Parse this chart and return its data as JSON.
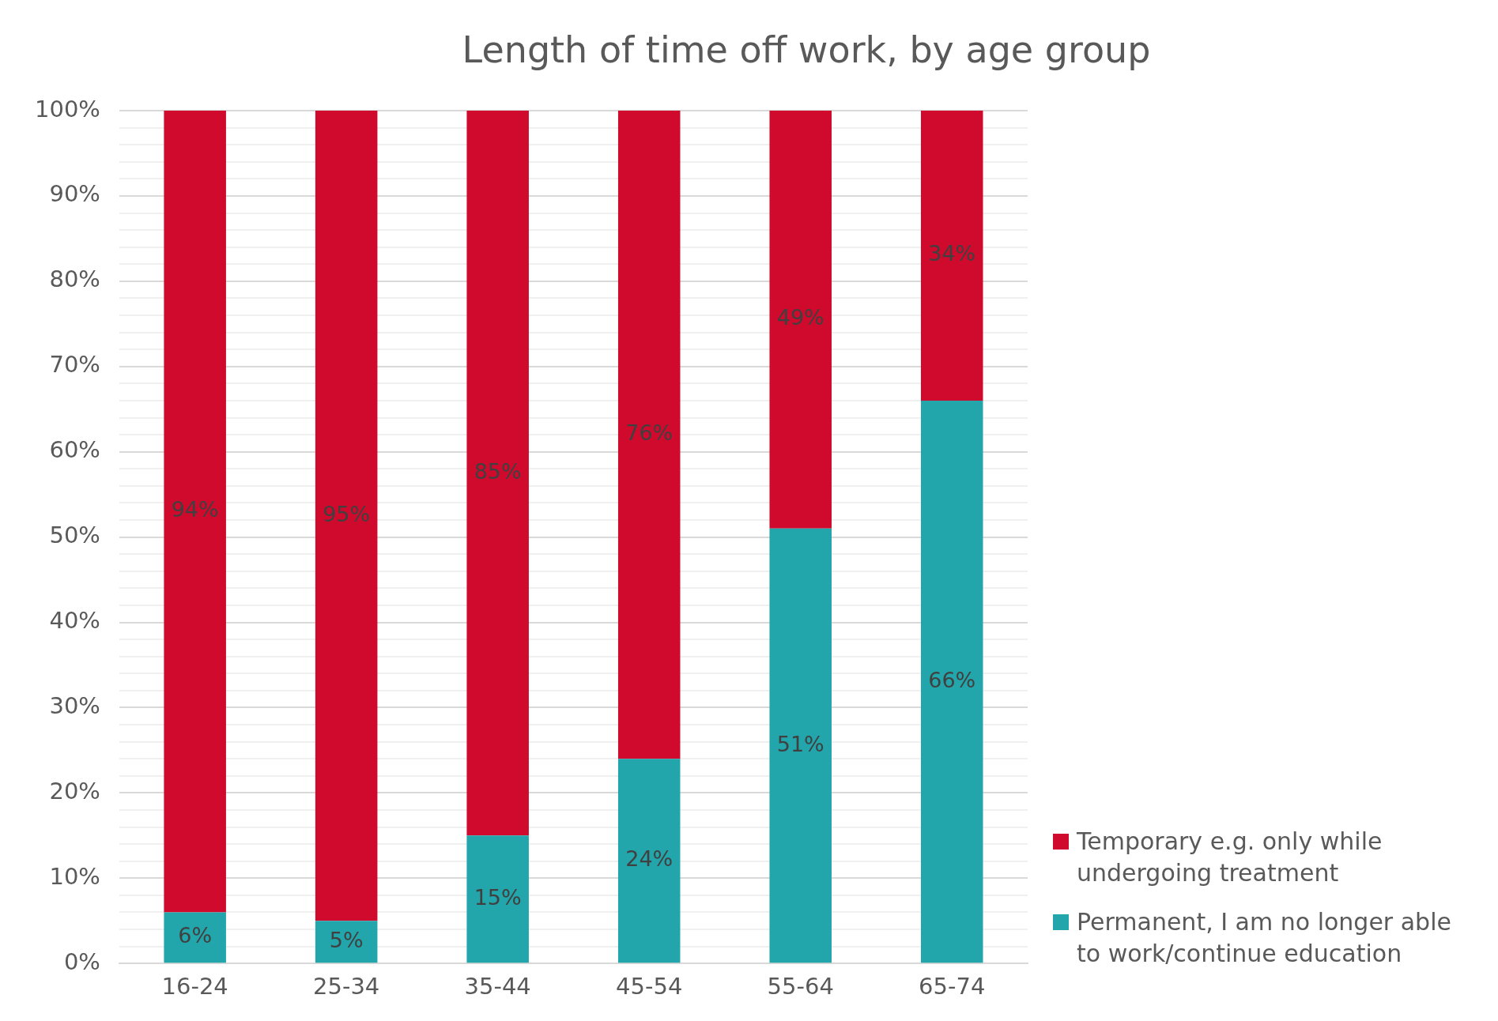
{
  "chart_data": {
    "type": "bar",
    "title": "Length of time off work, by age group",
    "categories": [
      "16-24",
      "25-34",
      "35-44",
      "45-54",
      "55-64",
      "65-74"
    ],
    "stacked": true,
    "series": [
      {
        "name": "Permanent, I am no longer able to work/continue education",
        "color": "#22a6ab",
        "values": [
          6,
          5,
          15,
          24,
          51,
          66
        ],
        "value_labels": [
          "6%",
          "5%",
          "15%",
          "24%",
          "51%",
          "66%"
        ]
      },
      {
        "name": "Temporary e.g. only while undergoing treatment",
        "color": "#cf0a2c",
        "values": [
          94,
          95,
          85,
          76,
          49,
          34
        ],
        "value_labels": [
          "94%",
          "95%",
          "85%",
          "76%",
          "49%",
          "34%"
        ]
      }
    ],
    "ylim": [
      0,
      100
    ],
    "yticks": [
      {
        "value": 0,
        "label": "0%"
      },
      {
        "value": 2,
        "label": null
      },
      {
        "value": 4,
        "label": null
      },
      {
        "value": 6,
        "label": null
      },
      {
        "value": 8,
        "label": null
      },
      {
        "value": 10,
        "label": "10%"
      },
      {
        "value": 12,
        "label": null
      },
      {
        "value": 14,
        "label": null
      },
      {
        "value": 16,
        "label": null
      },
      {
        "value": 18,
        "label": null
      },
      {
        "value": 20,
        "label": "20%"
      },
      {
        "value": 22,
        "label": null
      },
      {
        "value": 24,
        "label": null
      },
      {
        "value": 26,
        "label": null
      },
      {
        "value": 28,
        "label": null
      },
      {
        "value": 30,
        "label": "30%"
      },
      {
        "value": 32,
        "label": null
      },
      {
        "value": 34,
        "label": null
      },
      {
        "value": 36,
        "label": null
      },
      {
        "value": 38,
        "label": null
      },
      {
        "value": 40,
        "label": "40%"
      },
      {
        "value": 42,
        "label": null
      },
      {
        "value": 44,
        "label": null
      },
      {
        "value": 46,
        "label": null
      },
      {
        "value": 48,
        "label": null
      },
      {
        "value": 50,
        "label": "50%"
      },
      {
        "value": 52,
        "label": null
      },
      {
        "value": 54,
        "label": null
      },
      {
        "value": 56,
        "label": null
      },
      {
        "value": 58,
        "label": null
      },
      {
        "value": 60,
        "label": "60%"
      },
      {
        "value": 62,
        "label": null
      },
      {
        "value": 64,
        "label": null
      },
      {
        "value": 66,
        "label": null
      },
      {
        "value": 68,
        "label": null
      },
      {
        "value": 70,
        "label": "70%"
      },
      {
        "value": 72,
        "label": null
      },
      {
        "value": 74,
        "label": null
      },
      {
        "value": 76,
        "label": null
      },
      {
        "value": 78,
        "label": null
      },
      {
        "value": 80,
        "label": "80%"
      },
      {
        "value": 82,
        "label": null
      },
      {
        "value": 84,
        "label": null
      },
      {
        "value": 86,
        "label": null
      },
      {
        "value": 88,
        "label": null
      },
      {
        "value": 90,
        "label": "90%"
      },
      {
        "value": 92,
        "label": null
      },
      {
        "value": 94,
        "label": null
      },
      {
        "value": 96,
        "label": null
      },
      {
        "value": 98,
        "label": null
      },
      {
        "value": 100,
        "label": "100%"
      }
    ],
    "grid": "y",
    "legend": "bottom right"
  }
}
